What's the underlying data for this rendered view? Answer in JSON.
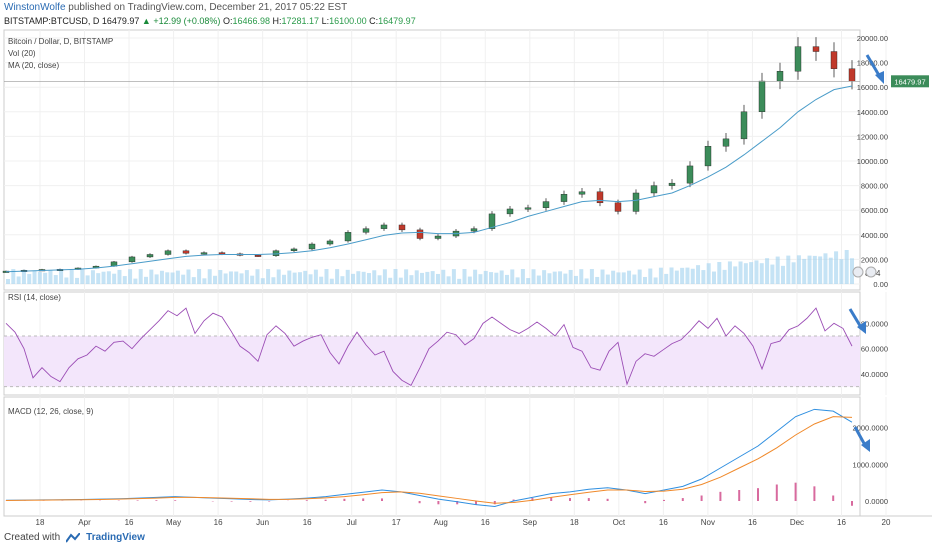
{
  "header": {
    "author": "WinstonWolfe",
    "published": "published on TradingView.com, December 21, 2017 05:22 EST",
    "symbol": "BITSTAMP:BTCUSD, D",
    "last": "16479.97",
    "change": "+12.99 (+0.08%)",
    "open_label": "O:",
    "open": "16466.98",
    "high_label": "H:",
    "high": "17281.17",
    "low_label": "L:",
    "low": "16100.00",
    "close_label": "C:",
    "close": "16479.97"
  },
  "footer": {
    "created_with": "Created with",
    "brand": "TradingView"
  },
  "colors": {
    "up": "#3c8c5a",
    "down": "#c0392b",
    "ma": "#4a9cc9",
    "rsi": "#9b4db5",
    "rsi_band": "#f3e6fb",
    "macd": "#2f8fe0",
    "signal": "#f0892a",
    "hist": "#d86a9e",
    "volume": "#9fd0ee",
    "arrow": "#3a7cc9"
  },
  "chart_data": [
    {
      "type": "line",
      "panel": "price",
      "title": "Bitcoin / Dollar, D, BITSTAMP",
      "indicators": [
        "Vol (20)",
        "MA (20, close)"
      ],
      "x_ticks": [
        "18",
        "Apr",
        "16",
        "May",
        "16",
        "Jun",
        "16",
        "Jul",
        "17",
        "Aug",
        "16",
        "Sep",
        "18",
        "Oct",
        "16",
        "Nov",
        "16",
        "Dec",
        "16",
        "20"
      ],
      "y_ticks": [
        "20000.00",
        "18000.00",
        "16000.00",
        "14000.00",
        "12000.00",
        "10000.00",
        "8000.00",
        "6000.00",
        "4000.00",
        "2000.00",
        "0.00"
      ],
      "ylim": [
        0,
        20000
      ],
      "last_price_label": "16479.97",
      "volume_badges": [
        "8",
        "4"
      ],
      "close_series": [
        1050,
        1120,
        1180,
        1200,
        1300,
        1450,
        1800,
        2200,
        2400,
        2700,
        2500,
        2550,
        2450,
        2350,
        2300,
        2700,
        2850,
        3250,
        3500,
        4200,
        4500,
        4800,
        4400,
        3700,
        3900,
        4300,
        4500,
        5700,
        6100,
        6200,
        6700,
        7300,
        7500,
        6600,
        5900,
        7400,
        8000,
        8200,
        9600,
        11200,
        11800,
        14000,
        16500,
        17300,
        19300,
        18900,
        17500,
        16480
      ],
      "ma20_series": [
        1000,
        1050,
        1100,
        1150,
        1200,
        1300,
        1450,
        1650,
        1850,
        2050,
        2250,
        2350,
        2400,
        2400,
        2400,
        2450,
        2550,
        2700,
        2950,
        3250,
        3600,
        3950,
        4150,
        4200,
        4100,
        4100,
        4200,
        4600,
        5000,
        5500,
        5900,
        6300,
        6700,
        6800,
        6700,
        6800,
        7100,
        7400,
        8000,
        8700,
        9500,
        10500,
        11600,
        12700,
        14000,
        15000,
        15800,
        16100
      ]
    },
    {
      "type": "line",
      "panel": "rsi",
      "title": "RSI (14, close)",
      "y_ticks": [
        "80.0000",
        "60.0000",
        "40.0000"
      ],
      "bands": [
        30,
        70
      ],
      "ylim": [
        25,
        100
      ],
      "values": [
        80,
        73,
        60,
        37,
        45,
        38,
        34,
        45,
        52,
        55,
        62,
        58,
        65,
        66,
        60,
        68,
        75,
        82,
        90,
        86,
        92,
        72,
        82,
        88,
        85,
        74,
        62,
        57,
        50,
        71,
        78,
        72,
        62,
        66,
        69,
        71,
        57,
        48,
        62,
        73,
        63,
        55,
        58,
        42,
        35,
        31,
        45,
        60,
        66,
        73,
        71,
        63,
        68,
        80,
        85,
        80,
        75,
        72,
        76,
        81,
        76,
        70,
        79,
        61,
        58,
        45,
        43,
        58,
        65,
        32,
        50,
        56,
        54,
        59,
        64,
        67,
        74,
        82,
        76,
        84,
        70,
        78,
        72,
        62,
        44,
        64,
        66,
        75,
        78,
        84,
        92,
        74,
        80,
        76,
        62
      ]
    },
    {
      "type": "line",
      "panel": "macd",
      "title": "MACD (12, 26, close, 9)",
      "y_ticks": [
        "2000.0000",
        "1000.0000",
        "0.0000"
      ],
      "ylim": [
        -300,
        2700
      ],
      "series": [
        {
          "name": "MACD",
          "values": [
            20,
            25,
            30,
            35,
            40,
            50,
            60,
            80,
            100,
            120,
            100,
            80,
            60,
            40,
            30,
            50,
            80,
            120,
            180,
            240,
            300,
            250,
            150,
            50,
            -20,
            -100,
            -150,
            0,
            100,
            200,
            250,
            320,
            360,
            300,
            200,
            300,
            400,
            600,
            900,
            1200,
            1500,
            1900,
            2300,
            2500,
            2450,
            2150
          ]
        },
        {
          "name": "Signal",
          "values": [
            15,
            20,
            25,
            30,
            35,
            42,
            50,
            65,
            80,
            100,
            100,
            90,
            75,
            60,
            45,
            45,
            60,
            85,
            120,
            170,
            230,
            250,
            210,
            140,
            70,
            0,
            -60,
            -40,
            20,
            100,
            170,
            240,
            300,
            300,
            260,
            270,
            320,
            450,
            650,
            900,
            1150,
            1450,
            1800,
            2100,
            2300,
            2280
          ]
        }
      ],
      "histogram": [
        5,
        5,
        5,
        5,
        5,
        8,
        10,
        15,
        20,
        20,
        0,
        -10,
        -15,
        -20,
        -15,
        5,
        20,
        35,
        60,
        70,
        70,
        0,
        -60,
        -90,
        -90,
        -100,
        -90,
        40,
        80,
        100,
        80,
        80,
        60,
        0,
        -60,
        30,
        80,
        150,
        250,
        300,
        350,
        450,
        500,
        400,
        150,
        -130
      ]
    }
  ]
}
